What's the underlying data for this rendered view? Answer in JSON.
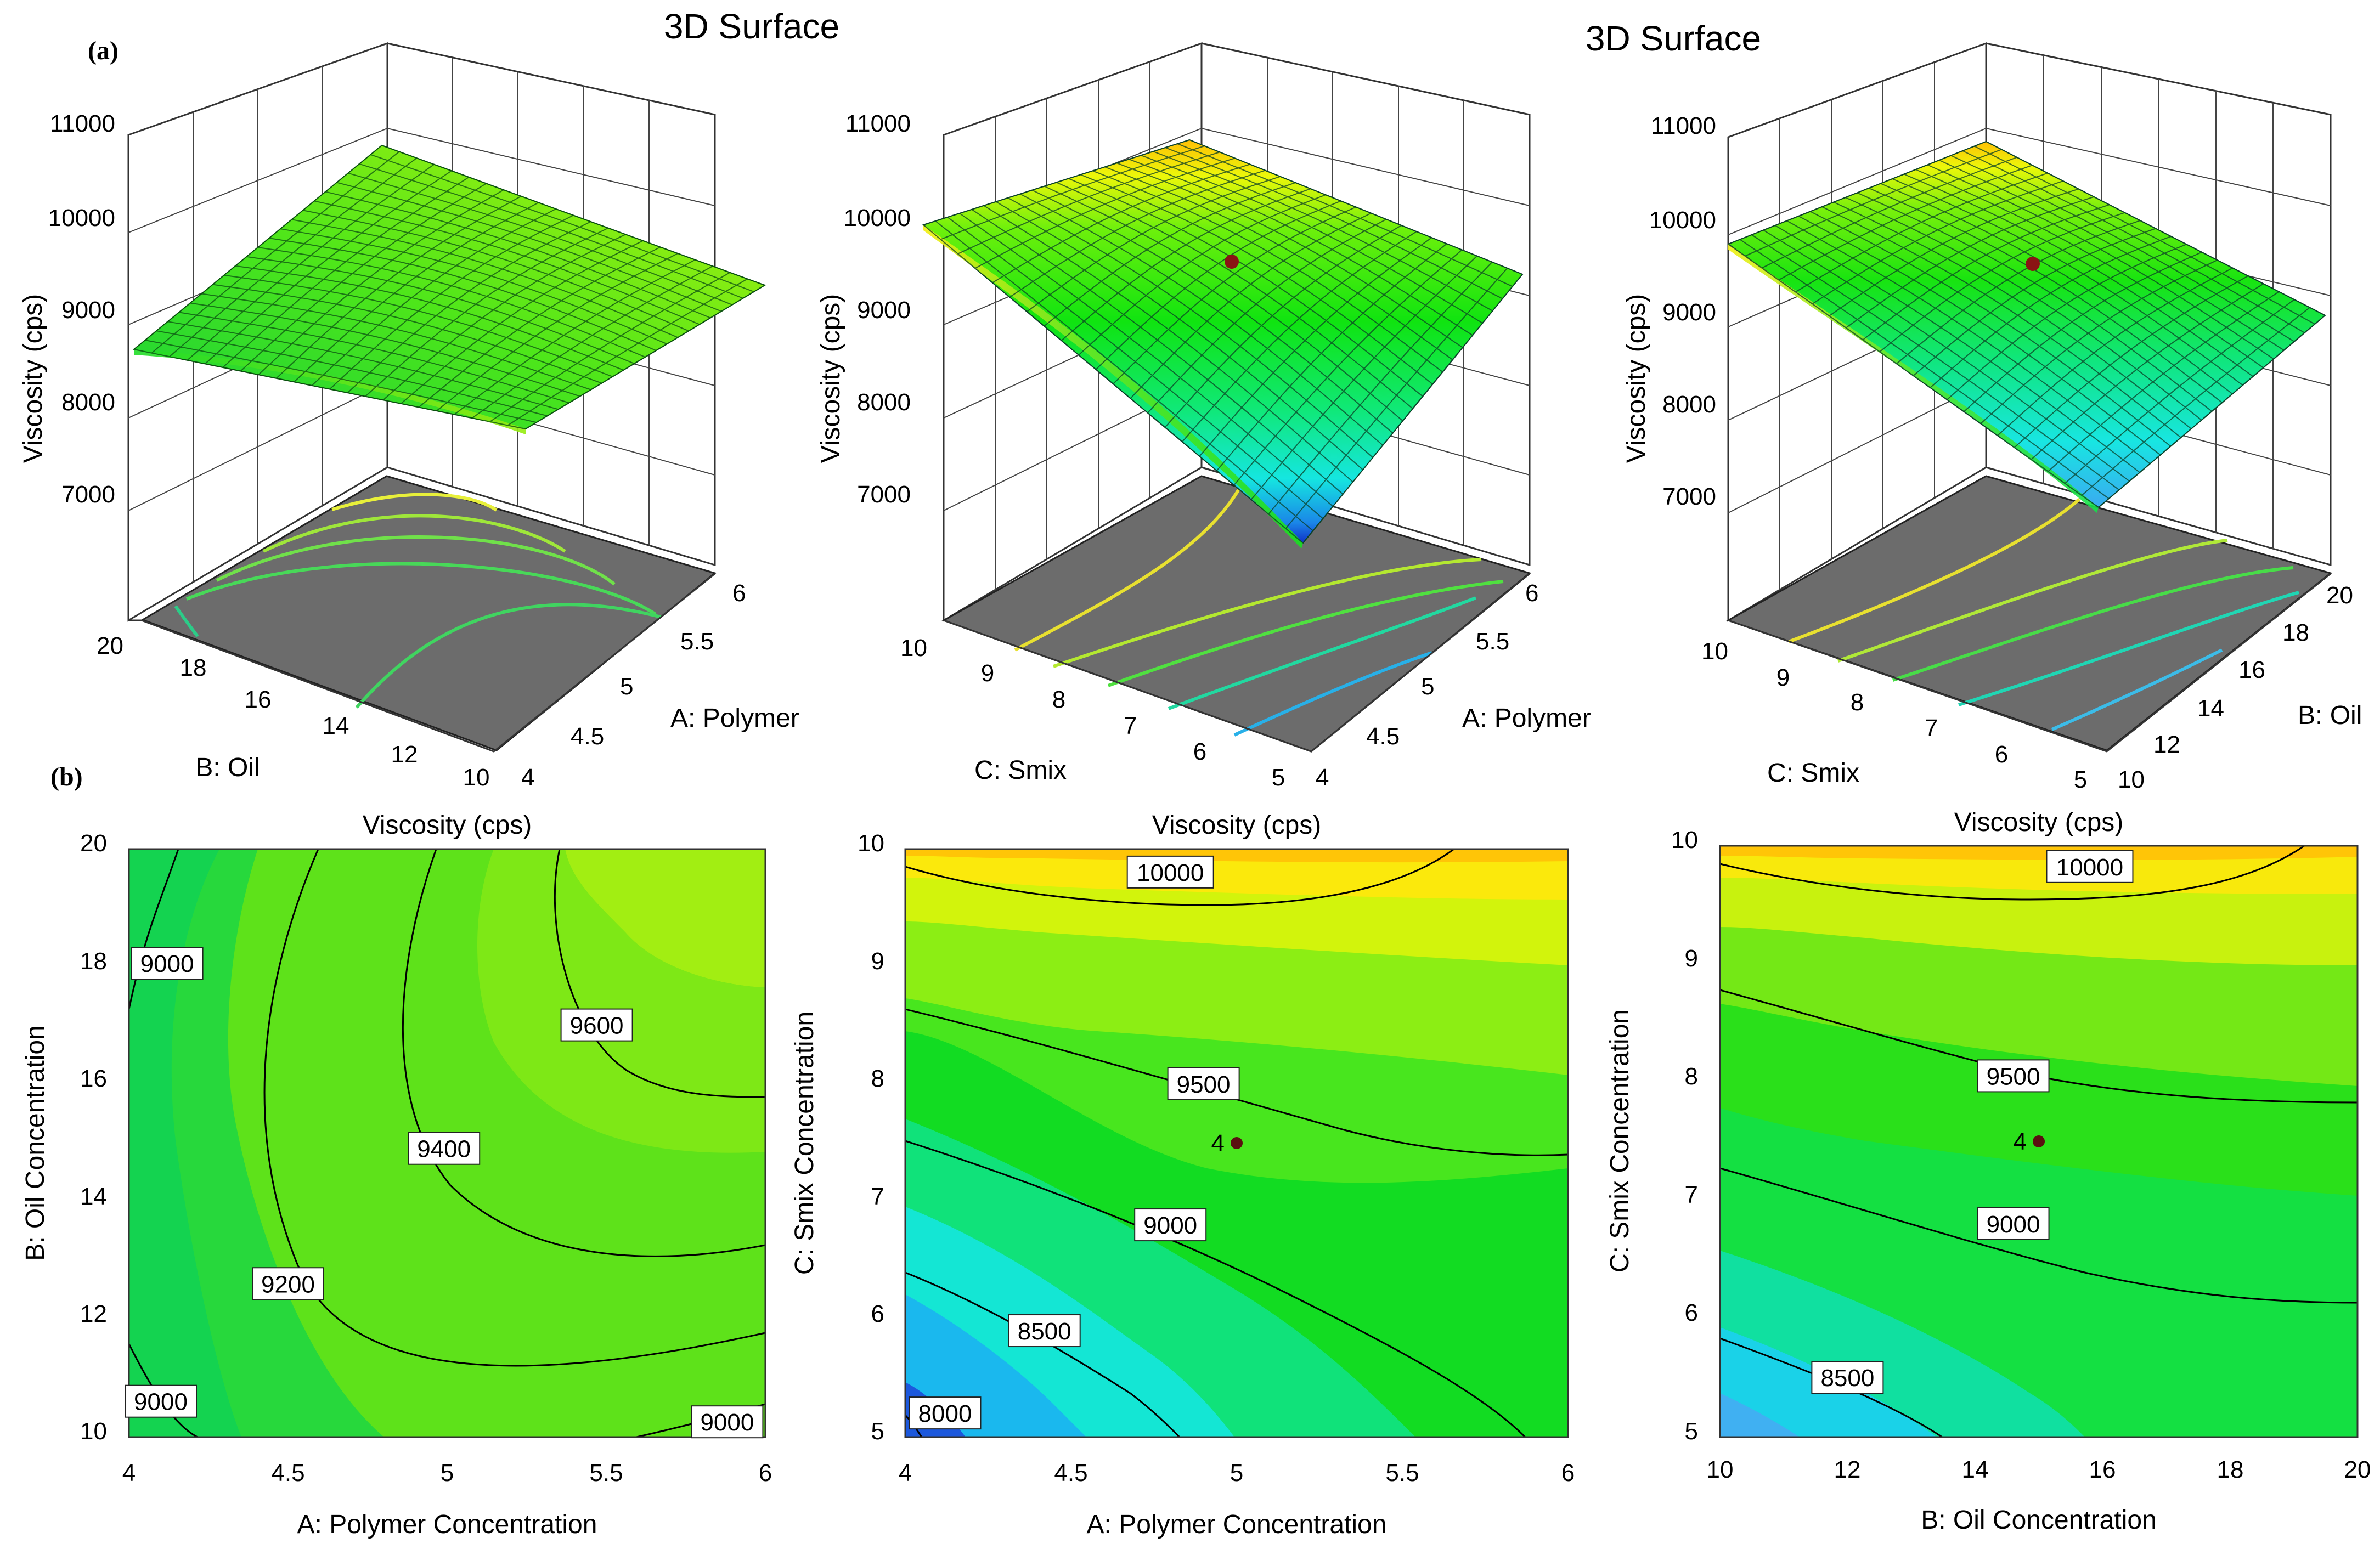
{
  "panel_labels": {
    "a": "(a)",
    "b": "(b)"
  },
  "chart_data": [
    {
      "type": "surface",
      "id": "surf_AB",
      "title": "3D Surface",
      "zlabel": "Viscosity (cps)",
      "zticks": [
        "7000",
        "8000",
        "9000",
        "10000",
        "11000"
      ],
      "zlim": [
        6000,
        11000
      ],
      "left_axis": {
        "label": "B: Oil",
        "ticks": [
          "20",
          "18",
          "16",
          "14",
          "12",
          "10"
        ]
      },
      "right_axis": {
        "label": "A: Polymer",
        "ticks": [
          "4",
          "4.5",
          "5",
          "5.5",
          "6"
        ]
      },
      "corners_viscosity": {
        "far": 9950,
        "left": 8700,
        "right": 9300,
        "front": 8850
      },
      "floor_contours": 5,
      "design_point": false
    },
    {
      "type": "surface",
      "id": "surf_AC",
      "title": "",
      "zlabel": "Viscosity (cps)",
      "zticks": [
        "7000",
        "8000",
        "9000",
        "10000",
        "11000"
      ],
      "zlim": [
        6000,
        11000
      ],
      "left_axis": {
        "label": "C: Smix",
        "ticks": [
          "10",
          "9",
          "8",
          "7",
          "6",
          "5"
        ]
      },
      "right_axis": {
        "label": "A: Polymer",
        "ticks": [
          "4",
          "4.5",
          "5",
          "5.5",
          "6"
        ]
      },
      "corners_viscosity": {
        "far": 10200,
        "left": 9900,
        "right": 9500,
        "front": 6200
      },
      "floor_contours": 5,
      "design_point": true
    },
    {
      "type": "surface",
      "id": "surf_BC",
      "title": "3D Surface",
      "zlabel": "Viscosity (cps)",
      "zticks": [
        "7000",
        "8000",
        "9000",
        "10000",
        "11000"
      ],
      "zlim": [
        6000,
        11000
      ],
      "left_axis": {
        "label": "C: Smix",
        "ticks": [
          "10",
          "9",
          "8",
          "7",
          "6",
          "5"
        ]
      },
      "right_axis": {
        "label": "B: Oil",
        "ticks": [
          "20",
          "18",
          "16",
          "14",
          "12",
          "10"
        ]
      },
      "corners_viscosity": {
        "far": 10300,
        "left": 9850,
        "right": 9500,
        "front": 7000
      },
      "floor_contours": 5,
      "design_point": true
    },
    {
      "type": "contour",
      "id": "cont_AB",
      "title": "Viscosity (cps)",
      "xlabel": "A: Polymer Concentration",
      "ylabel": "B: Oil Concentration",
      "xlim": [
        4,
        6
      ],
      "ylim": [
        10,
        20
      ],
      "xticks": [
        "4",
        "4.5",
        "5",
        "5.5",
        "6"
      ],
      "yticks": [
        "10",
        "12",
        "14",
        "16",
        "18",
        "20"
      ],
      "contour_labels": [
        {
          "text": "9000",
          "x": 4.12,
          "y": 18.05
        },
        {
          "text": "9600",
          "x": 5.47,
          "y": 17.0
        },
        {
          "text": "9400",
          "x": 4.99,
          "y": 14.9
        },
        {
          "text": "9200",
          "x": 4.5,
          "y": 12.6
        },
        {
          "text": "9000",
          "x": 4.1,
          "y": 10.6
        },
        {
          "text": "9000",
          "x": 5.88,
          "y": 10.25
        }
      ],
      "center_point": null
    },
    {
      "type": "contour",
      "id": "cont_AC",
      "title": "Viscosity (cps)",
      "xlabel": "A: Polymer Concentration",
      "ylabel": "C: Smix Concentration",
      "xlim": [
        4,
        6
      ],
      "ylim": [
        5,
        10
      ],
      "xticks": [
        "4",
        "4.5",
        "5",
        "5.5",
        "6"
      ],
      "yticks": [
        "5",
        "6",
        "7",
        "8",
        "9",
        "10"
      ],
      "contour_labels": [
        {
          "text": "10000",
          "x": 4.8,
          "y": 9.8
        },
        {
          "text": "9500",
          "x": 4.9,
          "y": 8.0
        },
        {
          "text": "9000",
          "x": 4.8,
          "y": 6.8
        },
        {
          "text": "8500",
          "x": 4.42,
          "y": 5.9
        },
        {
          "text": "8000",
          "x": 4.12,
          "y": 5.2
        }
      ],
      "center_point": {
        "x": 5,
        "y": 7.5,
        "label": "4"
      }
    },
    {
      "type": "contour",
      "id": "cont_BC",
      "title": "Viscosity (cps)",
      "xlabel": "B: Oil Concentration",
      "ylabel": "C: Smix Concentration",
      "xlim": [
        10,
        20
      ],
      "ylim": [
        5,
        10
      ],
      "xticks": [
        "10",
        "12",
        "14",
        "16",
        "18",
        "20"
      ],
      "yticks": [
        "5",
        "6",
        "7",
        "8",
        "9",
        "10"
      ],
      "contour_labels": [
        {
          "text": "10000",
          "x": 15.8,
          "y": 9.82
        },
        {
          "text": "9500",
          "x": 14.6,
          "y": 8.05
        },
        {
          "text": "9000",
          "x": 14.6,
          "y": 6.8
        },
        {
          "text": "8500",
          "x": 12.0,
          "y": 5.5
        }
      ],
      "center_point": {
        "x": 15,
        "y": 7.5,
        "label": "4"
      }
    }
  ]
}
